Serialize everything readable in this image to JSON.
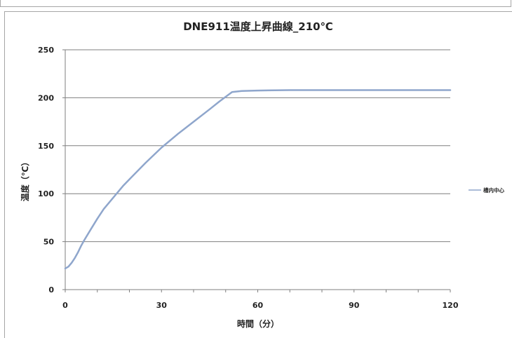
{
  "chart_data": {
    "type": "line",
    "title": "DNE911温度上昇曲線_210℃",
    "xlabel": "時間（分）",
    "ylabel": "温度（℃）",
    "xlim": [
      0,
      120
    ],
    "ylim": [
      0,
      250
    ],
    "xticks": [
      0,
      30,
      60,
      90,
      120
    ],
    "yticks": [
      0,
      50,
      100,
      150,
      200,
      250
    ],
    "grid": "horizontal",
    "legend_position": "right",
    "line_color": "#8fa6cc",
    "series": [
      {
        "name": "槽内中心",
        "x": [
          0,
          1,
          2,
          3,
          4,
          5,
          6,
          8,
          10,
          12,
          15,
          18,
          20,
          25,
          30,
          35,
          40,
          45,
          48,
          50,
          52,
          55,
          60,
          70,
          80,
          90,
          100,
          110,
          120
        ],
        "y": [
          22,
          24,
          28,
          33,
          39,
          46,
          52,
          63,
          74,
          84,
          96,
          108,
          115,
          132,
          148,
          162,
          175,
          188,
          196,
          201,
          206,
          207,
          207.5,
          208,
          208,
          208,
          208,
          208,
          208
        ]
      }
    ]
  }
}
